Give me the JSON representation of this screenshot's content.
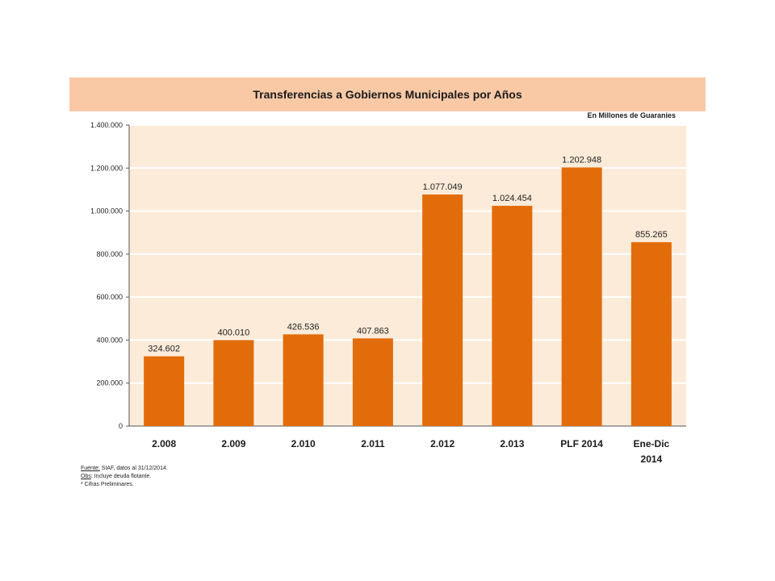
{
  "chart_data": {
    "type": "bar",
    "title": "Transferencias a Gobiernos Municipales por Años",
    "units_note": "En Millones de Guaranies",
    "categories": [
      "2.008",
      "2.009",
      "2.010",
      "2.011",
      "2.012",
      "2.013",
      "PLF 2014",
      "Ene-Dic 2014"
    ],
    "values": [
      324602,
      400010,
      426536,
      407863,
      1077049,
      1024454,
      1202948,
      855265
    ],
    "value_labels": [
      "324.602",
      "400.010",
      "426.536",
      "407.863",
      "1.077.049",
      "1.024.454",
      "1.202.948",
      "855.265"
    ],
    "ylim": [
      0,
      1400000
    ],
    "yticks": [
      0,
      200000,
      400000,
      600000,
      800000,
      1000000,
      1200000,
      1400000
    ],
    "ytick_labels": [
      "0",
      "200.000",
      "400.000",
      "600.000",
      "800.000",
      "1.000.000",
      "1.200.000",
      "1.400.000"
    ],
    "bar_color": "#e36c0a",
    "plot_bg_color": "#fdebd9",
    "grid": true
  },
  "notes": {
    "source_label": "Fuente:",
    "source_text": " SIAF,  datos al 31/12/2014.",
    "obs_label": "Obs",
    "obs_text": ": Incluye deuda flotante.",
    "prelim": "* Cifras Preliminares."
  }
}
